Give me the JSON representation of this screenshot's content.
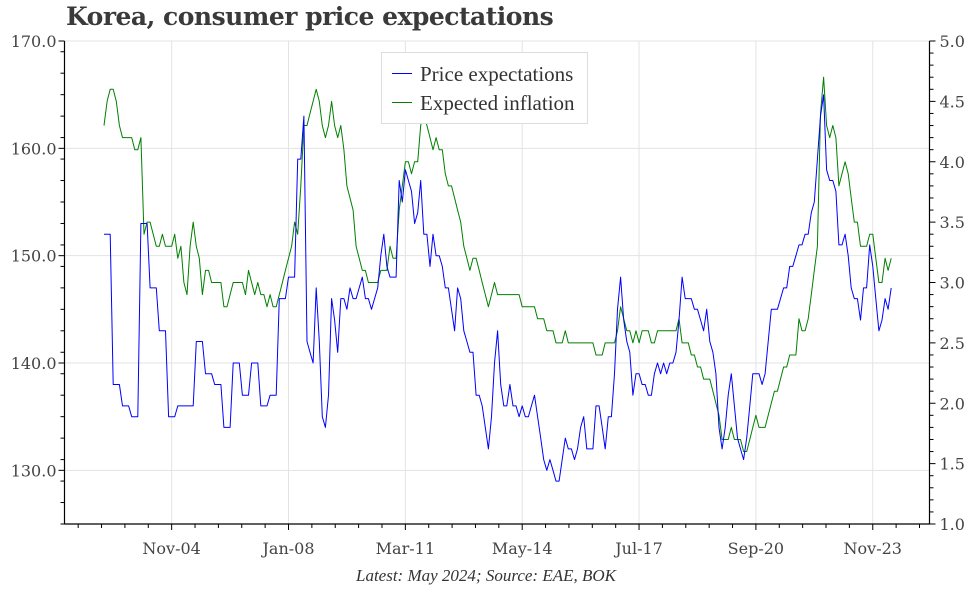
{
  "title": "Korea, consumer price expectations",
  "footer": "Latest: May 2024; Source: EAE, BOK",
  "chart_data": {
    "type": "line",
    "title": "Korea, consumer price expectations",
    "x_start": "Jan-03",
    "x_end": "May-24",
    "x_frequency": "monthly",
    "x_ticks": [
      "Nov-04",
      "Jan-08",
      "Mar-11",
      "May-14",
      "Jul-17",
      "Sep-20",
      "Nov-23"
    ],
    "y_left": {
      "lim": [
        125,
        170
      ],
      "ticks": [
        "130.0",
        "140.0",
        "150.0",
        "160.0",
        "170.0"
      ]
    },
    "y_right": {
      "lim": [
        1.0,
        5.0
      ],
      "ticks": [
        "1.0",
        "1.5",
        "2.0",
        "2.5",
        "3.0",
        "3.5",
        "4.0",
        "4.5",
        "5.0"
      ]
    },
    "grid": true,
    "legend": "top-center",
    "series": [
      {
        "name": "Price expectations",
        "axis": "left",
        "color": "#0000ff",
        "values": [
          152,
          152,
          152,
          138,
          138,
          138,
          136,
          136,
          136,
          135,
          135,
          135,
          153,
          153,
          153,
          147,
          147,
          147,
          143,
          143,
          143,
          135,
          135,
          135,
          136,
          136,
          136,
          136,
          136,
          136,
          142,
          142,
          142,
          139,
          139,
          139,
          138,
          138,
          138,
          134,
          134,
          134,
          140,
          140,
          140,
          137,
          137,
          137,
          140,
          140,
          140,
          136,
          136,
          136,
          137,
          137,
          137,
          146,
          146,
          146,
          148,
          148,
          148,
          159,
          159,
          163,
          142,
          141,
          140,
          147,
          142,
          135,
          134,
          137,
          146,
          144,
          141,
          146,
          146,
          145,
          147,
          146,
          146,
          147,
          148,
          146,
          146,
          145,
          146,
          147,
          150,
          152,
          149,
          148,
          148,
          148,
          157,
          155,
          158,
          157,
          156,
          153,
          154,
          157,
          152,
          152,
          149,
          152,
          150,
          150,
          149,
          147,
          147,
          145,
          143,
          147,
          146,
          143,
          142,
          141,
          141,
          137,
          137,
          136,
          134,
          132,
          135,
          140,
          143,
          138,
          136,
          136,
          138,
          136,
          136,
          135,
          136,
          135,
          135,
          136,
          137,
          135,
          133,
          131,
          130,
          131,
          130,
          129,
          129,
          131,
          133,
          132,
          132,
          131,
          132,
          134,
          135,
          132,
          132,
          132,
          136,
          136,
          134,
          132,
          135,
          135,
          139,
          145,
          148,
          144,
          142,
          141,
          137,
          139,
          139,
          138,
          138,
          137,
          137,
          139,
          140,
          139,
          140,
          139,
          140,
          140,
          141,
          144,
          148,
          146,
          146,
          146,
          145,
          145,
          144,
          143,
          145,
          142,
          141,
          139,
          134,
          132,
          134,
          137,
          139,
          136,
          133,
          132,
          131,
          133,
          136,
          139,
          139,
          139,
          138,
          139,
          142,
          145,
          145,
          145,
          146,
          147,
          147,
          149,
          149,
          150,
          151,
          151,
          152,
          152,
          154,
          155,
          159,
          163,
          165,
          158,
          157,
          157,
          156,
          151,
          151,
          152,
          150,
          147,
          146,
          146,
          144,
          147,
          147,
          151,
          149,
          146,
          143,
          144,
          146,
          145,
          147
        ]
      },
      {
        "name": "Expected inflation",
        "axis": "right",
        "color": "#008000",
        "values": [
          4.3,
          4.5,
          4.6,
          4.6,
          4.5,
          4.3,
          4.2,
          4.2,
          4.2,
          4.2,
          4.1,
          4.1,
          4.2,
          3.4,
          3.5,
          3.5,
          3.4,
          3.3,
          3.3,
          3.4,
          3.3,
          3.3,
          3.3,
          3.4,
          3.2,
          3.3,
          3.0,
          2.9,
          3.3,
          3.5,
          3.3,
          3.2,
          2.9,
          3.1,
          3.1,
          3.0,
          3.0,
          3.0,
          3.0,
          2.8,
          2.8,
          2.9,
          3.0,
          3.0,
          3.0,
          3.0,
          2.9,
          3.1,
          3.0,
          2.9,
          3.0,
          2.9,
          2.9,
          2.8,
          2.9,
          2.8,
          2.8,
          2.9,
          3.0,
          3.1,
          3.2,
          3.3,
          3.5,
          3.4,
          3.8,
          4.3,
          4.3,
          4.4,
          4.5,
          4.6,
          4.5,
          4.3,
          4.2,
          4.3,
          4.5,
          4.3,
          4.2,
          4.3,
          4.1,
          3.8,
          3.7,
          3.6,
          3.3,
          3.2,
          3.1,
          3.1,
          3.0,
          3.0,
          3.0,
          3.0,
          3.1,
          3.1,
          3.1,
          3.3,
          3.2,
          3.2,
          3.6,
          3.8,
          4.0,
          4.0,
          3.9,
          4.0,
          4.0,
          4.3,
          4.4,
          4.3,
          4.2,
          4.1,
          4.2,
          4.1,
          4.1,
          3.9,
          3.8,
          3.8,
          3.7,
          3.6,
          3.5,
          3.3,
          3.2,
          3.1,
          3.2,
          3.2,
          3.1,
          3.0,
          2.9,
          2.8,
          2.9,
          3.0,
          2.9,
          2.9,
          2.9,
          2.9,
          2.9,
          2.9,
          2.9,
          2.9,
          2.8,
          2.8,
          2.8,
          2.8,
          2.8,
          2.7,
          2.7,
          2.7,
          2.6,
          2.6,
          2.6,
          2.5,
          2.5,
          2.5,
          2.6,
          2.5,
          2.5,
          2.5,
          2.5,
          2.5,
          2.5,
          2.5,
          2.5,
          2.5,
          2.4,
          2.4,
          2.4,
          2.5,
          2.5,
          2.5,
          2.5,
          2.6,
          2.8,
          2.7,
          2.6,
          2.6,
          2.5,
          2.6,
          2.5,
          2.6,
          2.6,
          2.6,
          2.5,
          2.5,
          2.6,
          2.6,
          2.6,
          2.6,
          2.6,
          2.6,
          2.6,
          2.7,
          2.5,
          2.5,
          2.5,
          2.4,
          2.4,
          2.3,
          2.3,
          2.2,
          2.2,
          2.2,
          2.1,
          2.0,
          1.9,
          1.7,
          1.7,
          1.7,
          1.8,
          1.7,
          1.7,
          1.7,
          1.6,
          1.6,
          1.7,
          1.8,
          1.9,
          1.8,
          1.8,
          1.8,
          1.9,
          2.0,
          2.1,
          2.1,
          2.2,
          2.3,
          2.3,
          2.4,
          2.4,
          2.4,
          2.7,
          2.6,
          2.6,
          2.7,
          2.9,
          3.1,
          3.3,
          4.4,
          4.7,
          4.3,
          4.2,
          4.3,
          4.2,
          3.8,
          3.9,
          4.0,
          3.9,
          3.7,
          3.5,
          3.5,
          3.3,
          3.3,
          3.3,
          3.4,
          3.4,
          3.2,
          3.0,
          3.0,
          3.2,
          3.1,
          3.2
        ]
      }
    ]
  }
}
